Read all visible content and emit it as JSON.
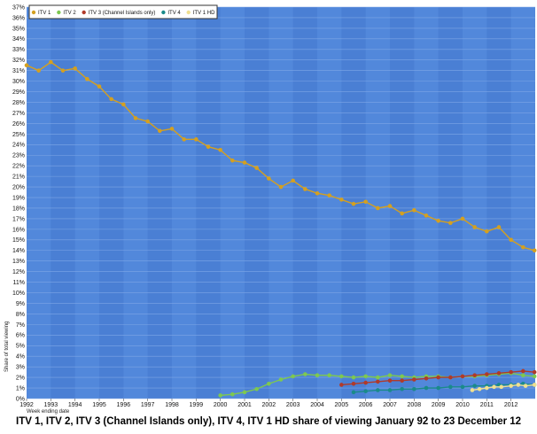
{
  "chart_data": {
    "type": "scatter",
    "title": "ITV 1, ITV 2, ITV 3 (Channel Islands only), ITV 4, ITV 1 HD share of viewing January 92 to 23 December 12",
    "xlabel": "Week ending date",
    "ylabel": "Share of total viewing",
    "x_tick_labels": [
      "1992",
      "1993",
      "1994",
      "1995",
      "1996",
      "1997",
      "1998",
      "1999",
      "2000",
      "2001",
      "2002",
      "2003",
      "2004",
      "2005",
      "2006",
      "2007",
      "2008",
      "2009",
      "2010",
      "2011",
      "2012"
    ],
    "y_tick_labels": [
      "0%",
      "1%",
      "2%",
      "3%",
      "4%",
      "5%",
      "6%",
      "7%",
      "8%",
      "9%",
      "10%",
      "11%",
      "12%",
      "13%",
      "14%",
      "15%",
      "16%",
      "17%",
      "18%",
      "19%",
      "20%",
      "21%",
      "22%",
      "23%",
      "24%",
      "25%",
      "26%",
      "27%",
      "28%",
      "29%",
      "30%",
      "31%",
      "32%",
      "33%",
      "34%",
      "35%",
      "36%",
      "37%"
    ],
    "xlim": [
      1992.0,
      2013.0
    ],
    "ylim": [
      0,
      37
    ],
    "y_unit": "%",
    "grid": true,
    "legend_position": "top-left",
    "colors": {
      "plot_background": "#4a7fd4",
      "band_alt": "#5a8fe0",
      "grid": "#7ea6e6"
    },
    "series": [
      {
        "name": "ITV 1",
        "color": "#d4a020",
        "x": [
          1992.0,
          1992.5,
          1993.0,
          1993.5,
          1994.0,
          1994.5,
          1995.0,
          1995.5,
          1996.0,
          1996.5,
          1997.0,
          1997.5,
          1998.0,
          1998.5,
          1999.0,
          1999.5,
          2000.0,
          2000.5,
          2001.0,
          2001.5,
          2002.0,
          2002.5,
          2003.0,
          2003.5,
          2004.0,
          2004.5,
          2005.0,
          2005.5,
          2006.0,
          2006.5,
          2007.0,
          2007.5,
          2008.0,
          2008.5,
          2009.0,
          2009.5,
          2010.0,
          2010.5,
          2011.0,
          2011.5,
          2012.0,
          2012.5,
          2012.97
        ],
        "y": [
          31.5,
          31.0,
          31.8,
          31.0,
          31.2,
          30.2,
          29.5,
          28.3,
          27.8,
          26.5,
          26.2,
          25.3,
          25.5,
          24.5,
          24.5,
          23.8,
          23.5,
          22.5,
          22.3,
          21.8,
          20.8,
          20.0,
          20.6,
          19.8,
          19.4,
          19.2,
          18.8,
          18.4,
          18.6,
          18.0,
          18.2,
          17.5,
          17.8,
          17.3,
          16.8,
          16.6,
          17.0,
          16.2,
          15.8,
          16.2,
          15.0,
          14.3,
          14.0
        ]
      },
      {
        "name": "ITV 2",
        "color": "#7ec850",
        "x": [
          2000.0,
          2000.5,
          2001.0,
          2001.5,
          2002.0,
          2002.5,
          2003.0,
          2003.5,
          2004.0,
          2004.5,
          2005.0,
          2005.5,
          2006.0,
          2006.5,
          2007.0,
          2007.5,
          2008.0,
          2008.5,
          2009.0,
          2009.5,
          2010.0,
          2010.5,
          2011.0,
          2011.5,
          2012.0,
          2012.5,
          2012.97
        ],
        "y": [
          0.3,
          0.4,
          0.6,
          0.9,
          1.4,
          1.8,
          2.1,
          2.3,
          2.2,
          2.2,
          2.1,
          2.0,
          2.1,
          2.0,
          2.2,
          2.1,
          2.0,
          2.1,
          2.1,
          2.0,
          2.1,
          2.1,
          2.2,
          2.3,
          2.4,
          2.2,
          2.1
        ]
      },
      {
        "name": "ITV 3 (Channel Islands only)",
        "color": "#b03a2a",
        "x": [
          2005.0,
          2005.5,
          2006.0,
          2006.5,
          2007.0,
          2007.5,
          2008.0,
          2008.5,
          2009.0,
          2009.5,
          2010.0,
          2010.5,
          2011.0,
          2011.5,
          2012.0,
          2012.5,
          2012.97
        ],
        "y": [
          1.3,
          1.4,
          1.5,
          1.6,
          1.7,
          1.7,
          1.8,
          1.9,
          2.0,
          2.0,
          2.1,
          2.2,
          2.3,
          2.4,
          2.5,
          2.6,
          2.5
        ]
      },
      {
        "name": "ITV 4",
        "color": "#1a8a8a",
        "x": [
          2005.5,
          2006.0,
          2006.5,
          2007.0,
          2007.5,
          2008.0,
          2008.5,
          2009.0,
          2009.5,
          2010.0,
          2010.5,
          2011.0,
          2011.5,
          2012.0,
          2012.5,
          2012.97
        ],
        "y": [
          0.6,
          0.7,
          0.8,
          0.8,
          0.9,
          0.9,
          1.0,
          1.0,
          1.1,
          1.1,
          1.2,
          1.2,
          1.3,
          1.3,
          1.4,
          1.3
        ]
      },
      {
        "name": "ITV 1 HD",
        "color": "#f0e090",
        "x": [
          2010.4,
          2010.7,
          2011.0,
          2011.3,
          2011.6,
          2012.0,
          2012.3,
          2012.6,
          2012.97
        ],
        "y": [
          0.8,
          0.9,
          1.0,
          1.1,
          1.1,
          1.2,
          1.3,
          1.2,
          1.3
        ]
      }
    ]
  }
}
